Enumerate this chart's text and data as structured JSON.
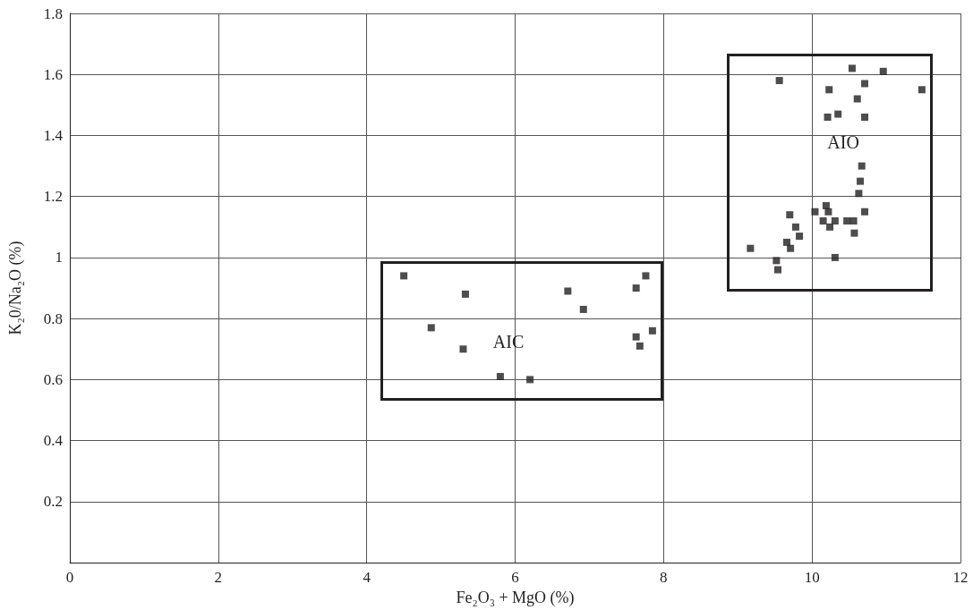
{
  "chart_data": {
    "type": "scatter",
    "xlabel": "Fe₂O₃ + MgO (%)",
    "ylabel": "K₂0/Na₂O (%)",
    "xlim": [
      0,
      12
    ],
    "xticks": [
      0,
      2,
      4,
      6,
      8,
      10,
      12
    ],
    "ylim": [
      0,
      1.8
    ],
    "yticks": [
      0.2,
      0.4,
      0.6,
      0.8,
      1,
      1.2,
      1.4,
      1.6,
      1.8
    ],
    "grid": true,
    "marker": "square",
    "series": [
      {
        "color": "#231f20",
        "x": [
          4.5,
          5.33,
          4.87,
          5.3,
          5.8,
          6.2,
          6.71,
          6.92,
          7.63,
          7.76,
          7.85,
          7.63,
          7.68
        ],
        "values": [
          0.94,
          0.88,
          0.77,
          0.7,
          0.61,
          0.6,
          0.89,
          0.83,
          0.9,
          0.94,
          0.76,
          0.74,
          0.71
        ]
      },
      {
        "color": "#231f20",
        "x": [
          10.54,
          10.96,
          9.56,
          10.71,
          10.23,
          11.48,
          10.61,
          10.35,
          10.21,
          10.71,
          10.67,
          10.65,
          10.63,
          10.71,
          10.19,
          10.22,
          10.04,
          9.7,
          9.78,
          9.83,
          10.15,
          10.24,
          10.31,
          10.47,
          10.56,
          10.57,
          9.66,
          9.71,
          9.17,
          10.31,
          9.52,
          9.54
        ],
        "values": [
          1.62,
          1.61,
          1.58,
          1.57,
          1.55,
          1.55,
          1.52,
          1.47,
          1.46,
          1.46,
          1.3,
          1.25,
          1.21,
          1.15,
          1.17,
          1.15,
          1.15,
          1.14,
          1.1,
          1.07,
          1.12,
          1.1,
          1.12,
          1.12,
          1.12,
          1.08,
          1.05,
          1.03,
          1.03,
          1.0,
          0.99,
          0.96
        ]
      }
    ],
    "annotations": [
      "AIC",
      "AIO"
    ]
  }
}
